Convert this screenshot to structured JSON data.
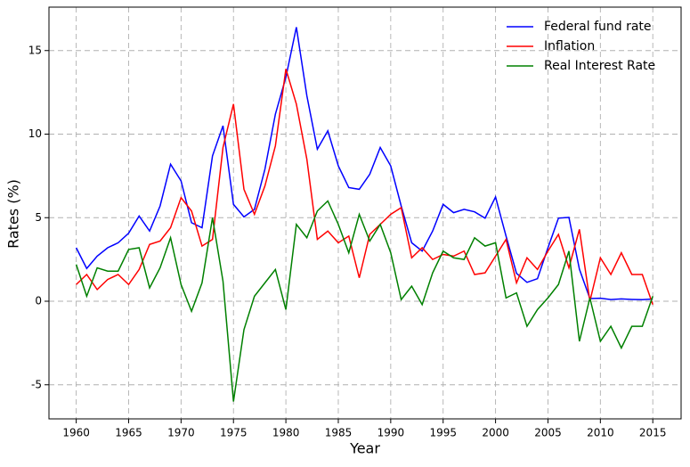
{
  "chart_data": {
    "type": "line",
    "xlabel": "Year",
    "ylabel": "Rates (%)",
    "x": [
      1960,
      1961,
      1962,
      1963,
      1964,
      1965,
      1966,
      1967,
      1968,
      1969,
      1970,
      1971,
      1972,
      1973,
      1974,
      1975,
      1976,
      1977,
      1978,
      1979,
      1980,
      1981,
      1982,
      1983,
      1984,
      1985,
      1986,
      1987,
      1988,
      1989,
      1990,
      1991,
      1992,
      1993,
      1994,
      1995,
      1996,
      1997,
      1998,
      1999,
      2000,
      2001,
      2002,
      2003,
      2004,
      2005,
      2006,
      2007,
      2008,
      2009,
      2010,
      2011,
      2012,
      2013,
      2014,
      2015
    ],
    "series": [
      {
        "name": "Federal fund rate",
        "color": "#0000ff",
        "values": [
          3.2,
          1.96,
          2.7,
          3.2,
          3.5,
          4.07,
          5.1,
          4.2,
          5.7,
          8.2,
          7.2,
          4.7,
          4.4,
          8.7,
          10.5,
          5.8,
          5.05,
          5.5,
          7.9,
          11.2,
          13.4,
          16.4,
          12.3,
          9.1,
          10.2,
          8.1,
          6.8,
          6.7,
          7.6,
          9.2,
          8.1,
          5.7,
          3.5,
          3.0,
          4.2,
          5.8,
          5.3,
          5.5,
          5.35,
          4.97,
          6.24,
          3.9,
          1.67,
          1.13,
          1.35,
          3.2,
          4.97,
          5.02,
          1.92,
          0.16,
          0.18,
          0.1,
          0.14,
          0.11,
          0.09,
          0.13
        ]
      },
      {
        "name": "Inflation",
        "color": "#ff0000",
        "values": [
          1.0,
          1.6,
          0.7,
          1.3,
          1.6,
          1.0,
          1.9,
          3.4,
          3.6,
          4.4,
          6.2,
          5.4,
          3.3,
          3.7,
          9.2,
          11.8,
          6.7,
          5.2,
          6.9,
          9.3,
          13.9,
          11.8,
          8.5,
          3.7,
          4.2,
          3.5,
          3.9,
          1.4,
          4.0,
          4.6,
          5.2,
          5.6,
          2.6,
          3.2,
          2.5,
          2.8,
          2.7,
          3.0,
          1.6,
          1.7,
          2.7,
          3.7,
          1.1,
          2.6,
          1.9,
          3.0,
          4.0,
          2.0,
          4.3,
          0.0,
          2.6,
          1.6,
          2.9,
          1.6,
          1.6,
          -0.2
        ]
      },
      {
        "name": "Real Interest Rate",
        "color": "#008000",
        "values": [
          2.2,
          0.3,
          2.0,
          1.8,
          1.8,
          3.1,
          3.2,
          0.8,
          2.0,
          3.8,
          1.0,
          -0.6,
          1.1,
          5.0,
          1.2,
          -6.0,
          -1.7,
          0.3,
          1.1,
          1.9,
          -0.5,
          4.6,
          3.8,
          5.4,
          6.0,
          4.6,
          2.9,
          5.2,
          3.6,
          4.6,
          2.9,
          0.1,
          0.9,
          -0.2,
          1.7,
          3.0,
          2.6,
          2.5,
          3.8,
          3.3,
          3.5,
          0.2,
          0.5,
          -1.5,
          -0.5,
          0.2,
          1.0,
          3.0,
          -2.4,
          0.2,
          -2.4,
          -1.5,
          -2.8,
          -1.5,
          -1.5,
          0.3
        ]
      }
    ],
    "xlim": [
      1957.4,
      2017.7
    ],
    "xticks": [
      1960,
      1965,
      1970,
      1975,
      1980,
      1985,
      1990,
      1995,
      2000,
      2005,
      2010,
      2015
    ],
    "ylim": [
      -7.04,
      17.6
    ],
    "yticks": [
      -5,
      0,
      5,
      10,
      15
    ],
    "grid": true,
    "legend": "upper right"
  }
}
